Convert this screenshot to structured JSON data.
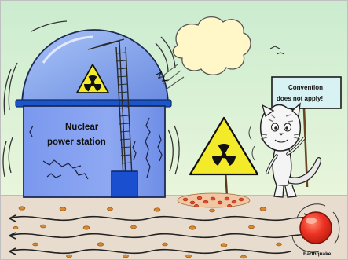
{
  "station": {
    "line1": "Nuclear",
    "line2": "power station"
  },
  "sign": {
    "line1": "Convention",
    "line2": "does not apply!"
  },
  "earthquake": {
    "label": "Earthquake"
  },
  "icons": [
    "radiation-hazard-icon",
    "warning-triangle-icon",
    "cloud-icon",
    "cat-character-icon",
    "earthquake-button-icon"
  ],
  "colors": {
    "sky_top": "#cfecd2",
    "sky_bottom": "#e6f5d9",
    "dome_blue": "#6f8fe6",
    "ground": "#e7dbcf",
    "hazard_yellow": "#f3ea29",
    "quake_red": "#ee3324"
  }
}
